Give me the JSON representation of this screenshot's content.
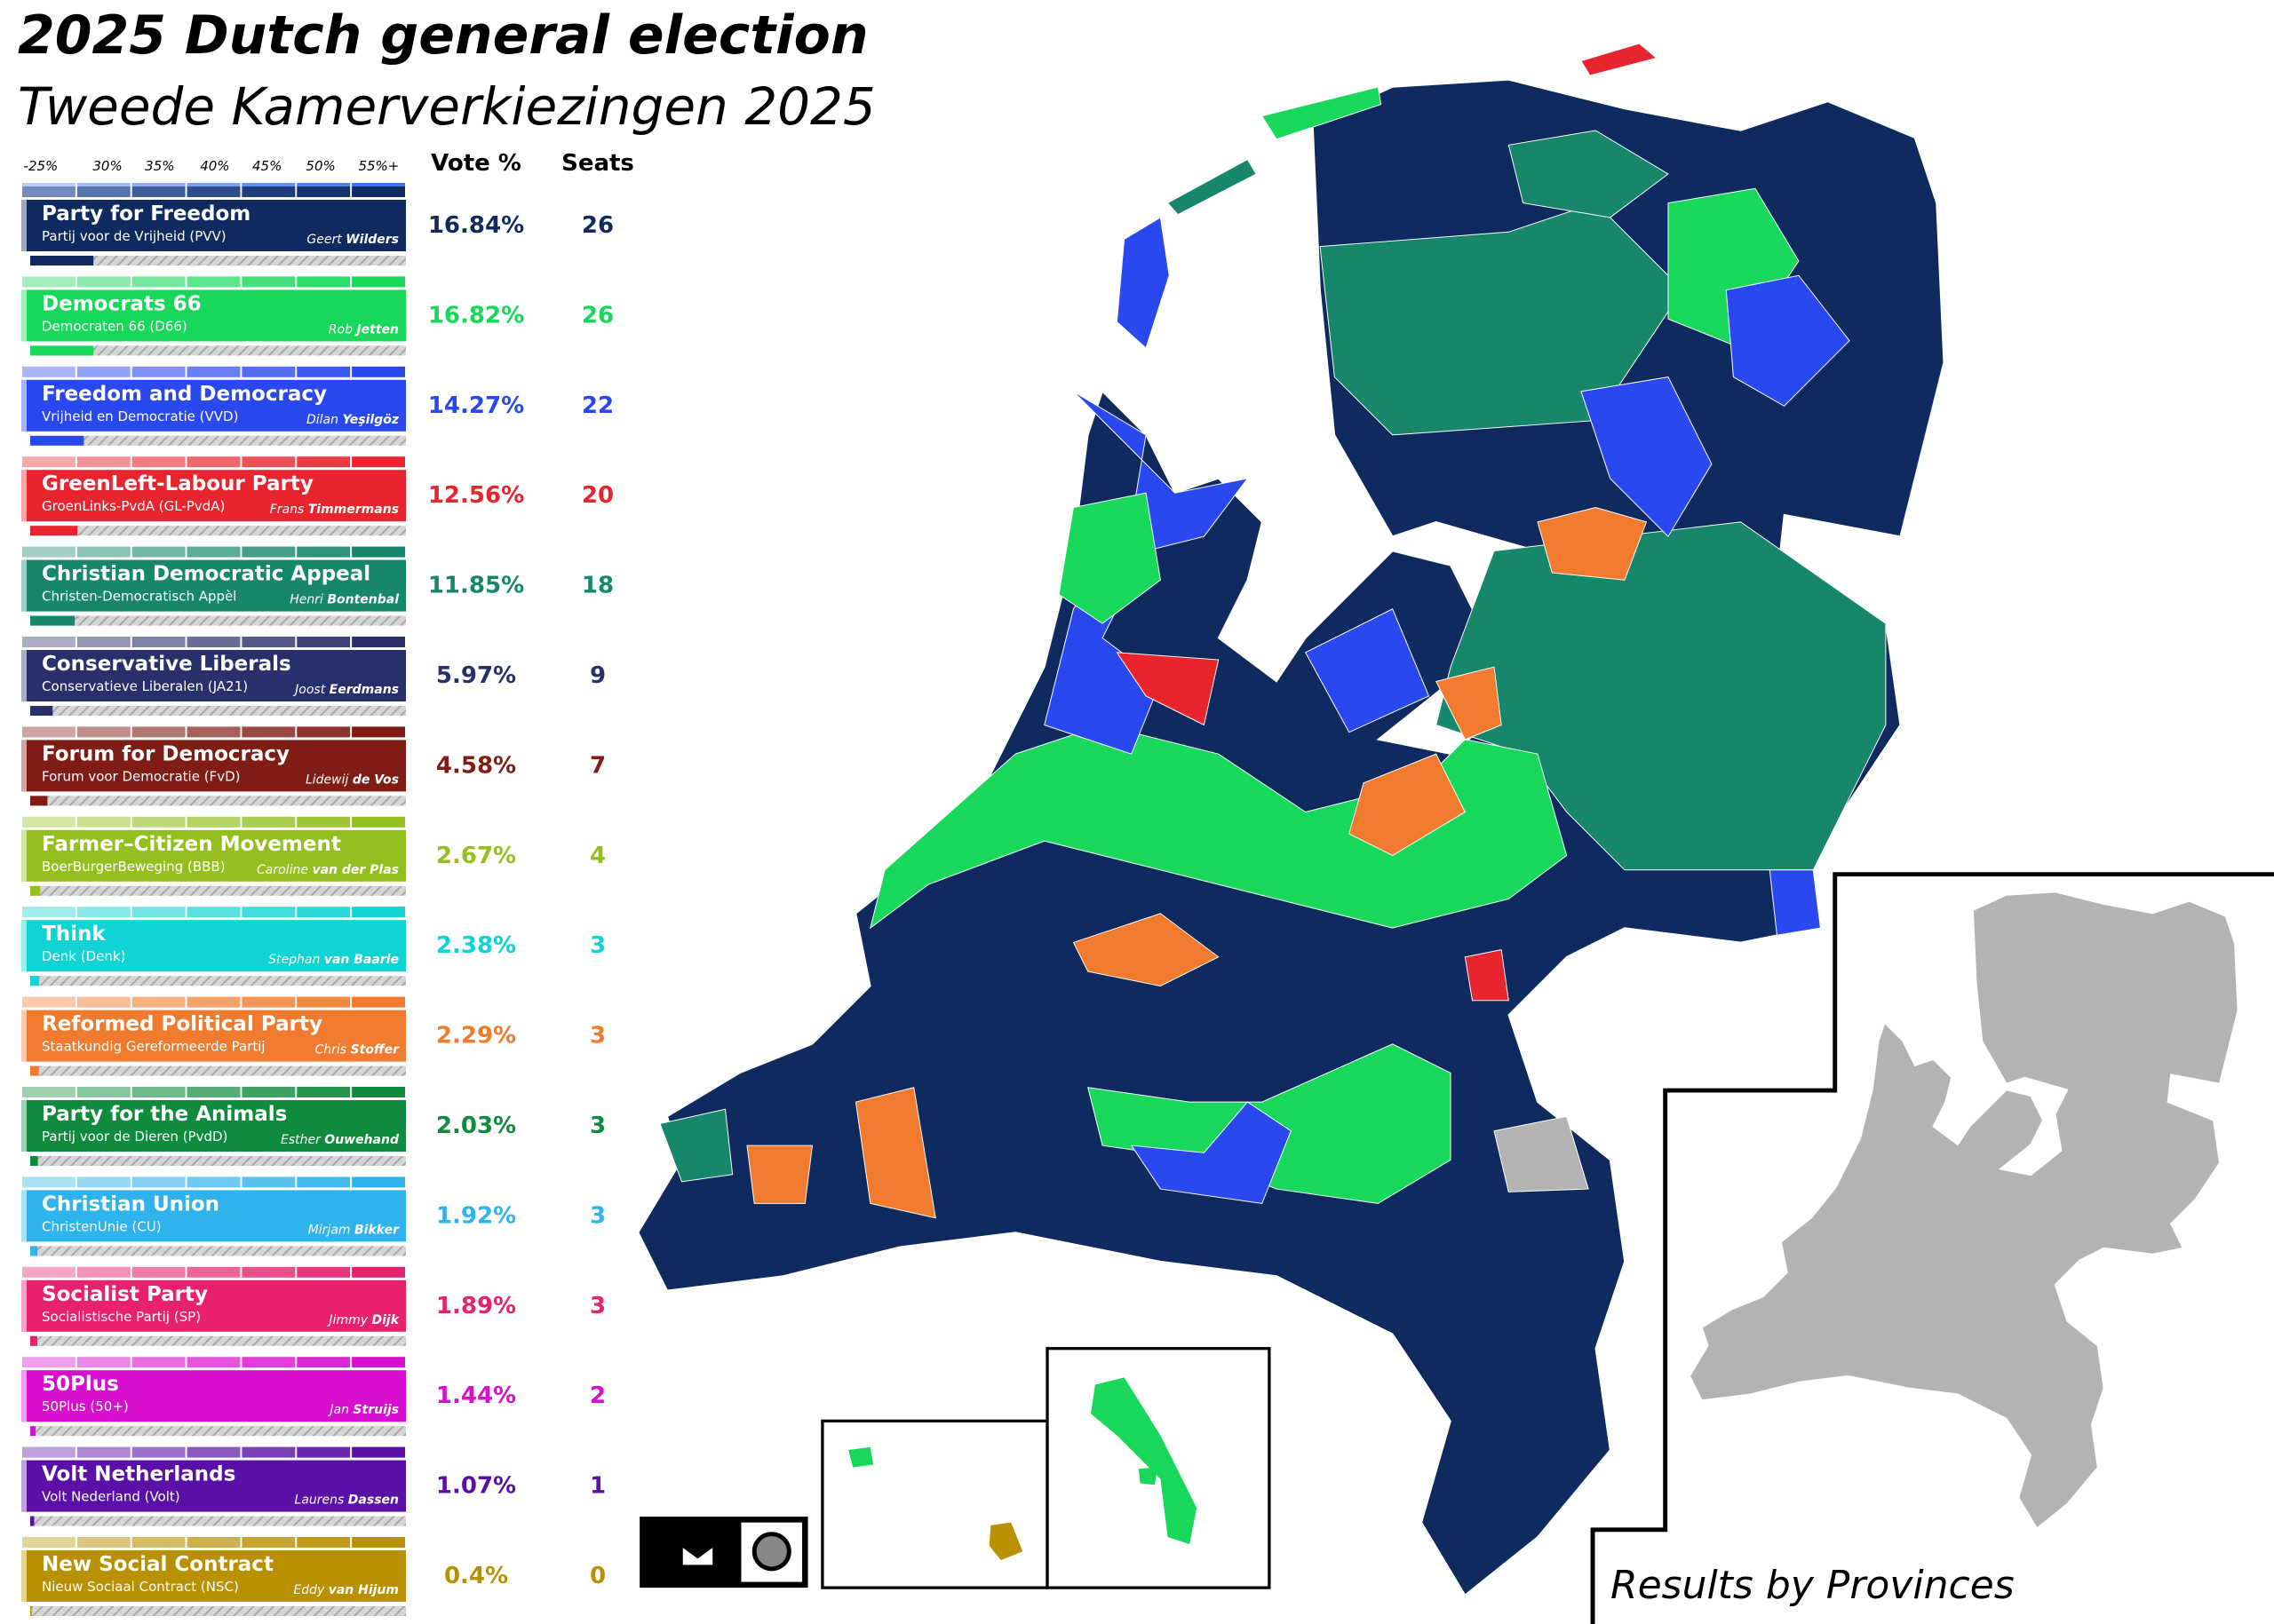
{
  "header": {
    "title": "2025 Dutch general election",
    "subtitle": "Tweede Kamerverkiezingen 2025"
  },
  "legend": {
    "scale": [
      "-25%",
      "30%",
      "35%",
      "40%",
      "45%",
      "50%",
      "55%+"
    ],
    "vote_header": "Vote %",
    "seats_header": "Seats",
    "parties": [
      {
        "name": "Party for Freedom",
        "native": "Partij voor de Vrijheid (PVV)",
        "leader_first": "Geert",
        "leader_last": "Wilders",
        "vote": "16.84%",
        "seats": 26,
        "color": "#0e2a5e"
      },
      {
        "name": "Democrats 66",
        "native": "Democraten 66 (D66)",
        "leader_first": "Rob",
        "leader_last": "Jetten",
        "vote": "16.82%",
        "seats": 26,
        "color": "#17d85a"
      },
      {
        "name": "Freedom and Democracy",
        "native": "Vrijheid en Democratie (VVD)",
        "leader_first": "Dilan",
        "leader_last": "Yeşilgöz",
        "vote": "14.27%",
        "seats": 22,
        "color": "#2a48f0"
      },
      {
        "name": "GreenLeft-Labour Party",
        "native": "GroenLinks-PvdA (GL-PvdA)",
        "leader_first": "Frans",
        "leader_last": "Timmermans",
        "vote": "12.56%",
        "seats": 20,
        "color": "#e8252e"
      },
      {
        "name": "Christian Democratic Appeal",
        "native": "Christen-Democratisch Appèl",
        "leader_first": "Henri",
        "leader_last": "Bontenbal",
        "vote": "11.85%",
        "seats": 18,
        "color": "#16876a"
      },
      {
        "name": "Conservative Liberals",
        "native": "Conservatieve Liberalen (JA21)",
        "leader_first": "Joost",
        "leader_last": "Eerdmans",
        "vote": "5.97%",
        "seats": 9,
        "color": "#27306b"
      },
      {
        "name": "Forum for Democracy",
        "native": "Forum voor Democratie (FvD)",
        "leader_first": "Lidewij",
        "leader_last": "de Vos",
        "vote": "4.58%",
        "seats": 7,
        "color": "#7f1c15"
      },
      {
        "name": "Farmer–Citizen Movement",
        "native": "BoerBurgerBeweging (BBB)",
        "leader_first": "Caroline",
        "leader_last": "van der Plas",
        "vote": "2.67%",
        "seats": 4,
        "color": "#93c01f"
      },
      {
        "name": "Think",
        "native": "Denk (Denk)",
        "leader_first": "Stephan",
        "leader_last": "van Baarle",
        "vote": "2.38%",
        "seats": 3,
        "color": "#12d3d3"
      },
      {
        "name": "Reformed Political Party",
        "native": "Staatkundig Gereformeerde Partij",
        "leader_first": "Chris",
        "leader_last": "Stoffer",
        "vote": "2.29%",
        "seats": 3,
        "color": "#f07b2e"
      },
      {
        "name": "Party for the Animals",
        "native": "Partij voor de Dieren (PvdD)",
        "leader_first": "Esther",
        "leader_last": "Ouwehand",
        "vote": "2.03%",
        "seats": 3,
        "color": "#0e8b3c"
      },
      {
        "name": "Christian Union",
        "native": "ChristenUnie (CU)",
        "leader_first": "Mirjam",
        "leader_last": "Bikker",
        "vote": "1.92%",
        "seats": 3,
        "color": "#2eb3ec"
      },
      {
        "name": "Socialist Party",
        "native": "Socialistische Partij (SP)",
        "leader_first": "Jimmy",
        "leader_last": "Dijk",
        "vote": "1.89%",
        "seats": 3,
        "color": "#e8216e"
      },
      {
        "name": "50Plus",
        "native": "50Plus (50+)",
        "leader_first": "Jan",
        "leader_last": "Struijs",
        "vote": "1.44%",
        "seats": 2,
        "color": "#d80fcf"
      },
      {
        "name": "Volt Netherlands",
        "native": "Volt Nederland (Volt)",
        "leader_first": "Laurens",
        "leader_last": "Dassen",
        "vote": "1.07%",
        "seats": 1,
        "color": "#5a0fa6"
      },
      {
        "name": "New Social Contract",
        "native": "Nieuw Sociaal Contract (NSC)",
        "leader_first": "Eddy",
        "leader_last": "van Hijum",
        "vote": "0.4%",
        "seats": 0,
        "color": "#b89000"
      }
    ]
  },
  "inset": {
    "caption": "Results by Provinces"
  }
}
